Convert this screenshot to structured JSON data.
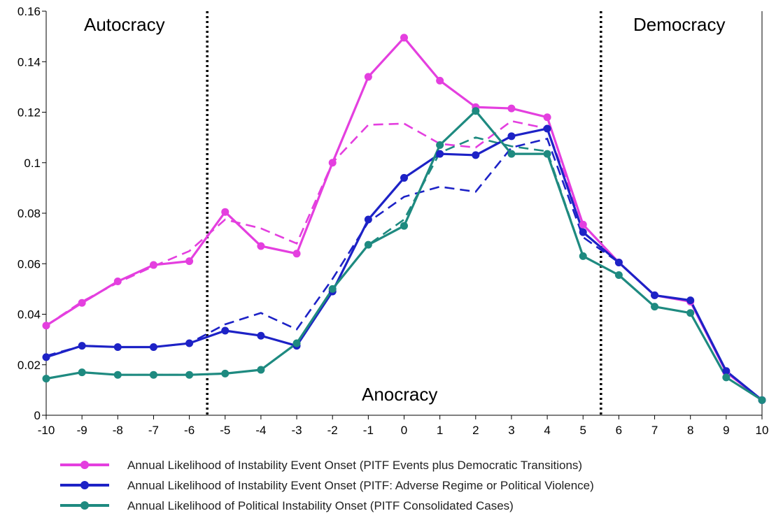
{
  "chart_data": {
    "type": "line",
    "x": [
      -10,
      -9,
      -8,
      -7,
      -6,
      -5,
      -4,
      -3,
      -2,
      -1,
      0,
      1,
      2,
      3,
      4,
      5,
      6,
      7,
      8,
      9,
      10
    ],
    "x_tick_labels": [
      "-10",
      "-9",
      "-8",
      "-7",
      "-6",
      "-5",
      "-4",
      "-3",
      "-2",
      "-1",
      "0",
      "1",
      "2",
      "3",
      "4",
      "5",
      "6",
      "7",
      "8",
      "9",
      "10"
    ],
    "y_tick_labels": [
      "0",
      "0.02",
      "0.04",
      "0.06",
      "0.08",
      "0.1",
      "0.12",
      "0.14",
      "0.16"
    ],
    "y_ticks": [
      0,
      0.02,
      0.04,
      0.06,
      0.08,
      0.1,
      0.12,
      0.14,
      0.16
    ],
    "xlim": [
      -10,
      10
    ],
    "ylim": [
      0,
      0.16
    ],
    "grid": false,
    "legend_position": "bottom",
    "series": [
      {
        "name": "Annual Likelihood of Instability Event Onset (PITF Events plus Democratic Transitions)",
        "color": "#e43fdf",
        "values": [
          0.0355,
          0.0445,
          0.053,
          0.0595,
          0.061,
          0.0805,
          0.067,
          0.064,
          0.1,
          0.134,
          0.1495,
          0.1325,
          0.122,
          0.1215,
          0.118,
          0.0755,
          0.0605,
          0.0475,
          0.045,
          0.017,
          0.006
        ],
        "trend": [
          0.0355,
          0.045,
          0.0525,
          0.059,
          0.065,
          0.0775,
          0.074,
          0.068,
          0.1,
          0.115,
          0.1155,
          0.1075,
          0.106,
          0.1165,
          0.1135,
          0.0755,
          0.0605,
          0.0475,
          0.045,
          0.017,
          0.006
        ]
      },
      {
        "name": "Annual Likelihood of Instability Event Onset (PITF: Adverse Regime or Political Violence)",
        "color": "#1d22c6",
        "values": [
          0.023,
          0.0275,
          0.027,
          0.027,
          0.0285,
          0.0335,
          0.0315,
          0.0275,
          0.049,
          0.0775,
          0.094,
          0.1035,
          0.103,
          0.1105,
          0.1135,
          0.0725,
          0.0605,
          0.0475,
          0.0455,
          0.0175,
          0.006
        ],
        "trend": [
          0.0235,
          0.0275,
          0.027,
          0.027,
          0.0285,
          0.036,
          0.0405,
          0.034,
          0.054,
          0.0765,
          0.0865,
          0.0905,
          0.0885,
          0.106,
          0.1095,
          0.0705,
          0.0605,
          0.0475,
          0.0455,
          0.0175,
          0.006
        ]
      },
      {
        "name": "Annual Likelihood of Political Instability Onset (PITF Consolidated Cases)",
        "color": "#1e8a80",
        "values": [
          0.0145,
          0.017,
          0.016,
          0.016,
          0.016,
          0.0165,
          0.018,
          0.0285,
          0.05,
          0.0675,
          0.075,
          0.107,
          0.1205,
          0.1035,
          0.1035,
          0.063,
          0.0555,
          0.043,
          0.0405,
          0.015,
          0.006
        ],
        "trend": [
          0.0145,
          0.017,
          0.016,
          0.016,
          0.016,
          0.0165,
          0.018,
          0.0285,
          0.05,
          0.0675,
          0.0775,
          0.104,
          0.11,
          0.1065,
          0.1045,
          0.063,
          0.0555,
          0.043,
          0.0405,
          0.015,
          0.006
        ]
      }
    ],
    "dividers": [
      -5.5,
      5.5
    ],
    "regions": {
      "autocracy": "Autocracy",
      "anocracy": "Anocracy",
      "democracy": "Democracy"
    }
  }
}
